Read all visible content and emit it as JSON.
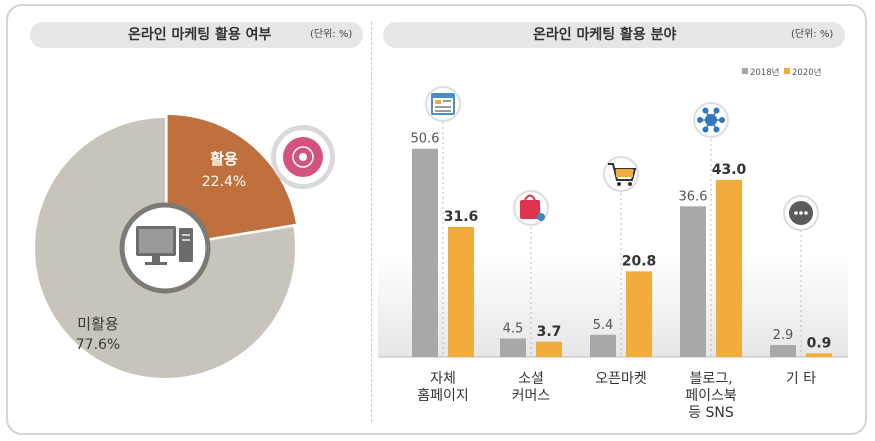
{
  "left_panel": {
    "title": "온라인 마케팅 활용 여부",
    "unit": "(단위: %)"
  },
  "right_panel": {
    "title": "온라인 마케팅 활용 분야",
    "unit": "(단위: %)"
  },
  "colors": {
    "gray": "#a8a8a8",
    "orange": "#f2ac3b",
    "pie_used": "#c0703c",
    "pie_unused": "#c9c4bb"
  },
  "icons": [
    "monitor-icon",
    "cd-icon",
    "webpage-icon",
    "shopping-bag-icon",
    "shopping-cart-icon",
    "network-icon",
    "more-dots-icon"
  ],
  "chart_data": [
    {
      "type": "pie",
      "title": "온라인 마케팅 활용 여부",
      "unit": "%",
      "slices": [
        {
          "label": "활용",
          "value": 22.4,
          "value_label": "22.4%"
        },
        {
          "label": "미활용",
          "value": 77.6,
          "value_label": "77.6%"
        }
      ]
    },
    {
      "type": "bar",
      "title": "온라인 마케팅 활용 분야",
      "unit": "%",
      "legend_position": "top-right",
      "categories": [
        [
          "자체",
          "홈페이지"
        ],
        [
          "소셜",
          "커머스"
        ],
        [
          "오픈마켓"
        ],
        [
          "블로그,",
          "페이스북",
          "등 SNS"
        ],
        [
          "기 타"
        ]
      ],
      "series": [
        {
          "name": "2018년",
          "values": [
            50.6,
            4.5,
            5.4,
            36.6,
            2.9
          ],
          "labels": [
            "50.6",
            "4.5",
            "5.4",
            "36.6",
            "2.9"
          ]
        },
        {
          "name": "2020년",
          "values": [
            31.6,
            3.7,
            20.8,
            43.0,
            0.9
          ],
          "labels": [
            "31.6",
            "3.7",
            "20.8",
            "43.0",
            "0.9"
          ]
        }
      ],
      "ylim": [
        0,
        60
      ]
    }
  ]
}
